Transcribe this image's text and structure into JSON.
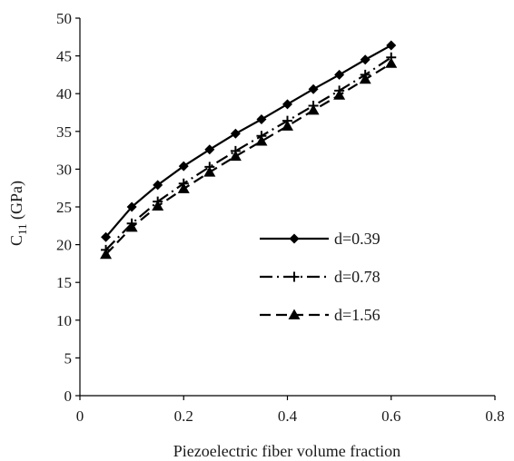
{
  "chart_data": {
    "type": "line",
    "xlabel": "Piezoelectric fiber volume fraction",
    "ylabel_main": "C",
    "ylabel_sub": "11",
    "ylabel_unit": " (GPa)",
    "xlim": [
      0,
      0.8
    ],
    "ylim": [
      0,
      50
    ],
    "x_ticks": [
      "0",
      "0.2",
      "0.4",
      "0.6",
      "0.8"
    ],
    "y_ticks": [
      "0",
      "5",
      "10",
      "15",
      "20",
      "25",
      "30",
      "35",
      "40",
      "45",
      "50"
    ],
    "grid": false,
    "legend_position": "right-center",
    "x": [
      0.05,
      0.1,
      0.15,
      0.2,
      0.25,
      0.3,
      0.35,
      0.4,
      0.45,
      0.5,
      0.55,
      0.6
    ],
    "series": [
      {
        "name": "d=0.39",
        "marker": "diamond",
        "line": "solid",
        "values": [
          21.0,
          25.0,
          27.9,
          30.4,
          32.6,
          34.7,
          36.6,
          38.6,
          40.6,
          42.5,
          44.5,
          46.4
        ]
      },
      {
        "name": "d=0.78",
        "marker": "plus",
        "line": "dash-dot",
        "values": [
          19.3,
          22.8,
          25.7,
          28.1,
          30.3,
          32.4,
          34.4,
          36.4,
          38.4,
          40.4,
          42.5,
          44.8
        ]
      },
      {
        "name": "d=1.56",
        "marker": "triangle",
        "line": "dashed",
        "values": [
          18.7,
          22.3,
          25.1,
          27.4,
          29.6,
          31.7,
          33.7,
          35.7,
          37.8,
          39.8,
          41.9,
          44.0
        ]
      }
    ]
  }
}
